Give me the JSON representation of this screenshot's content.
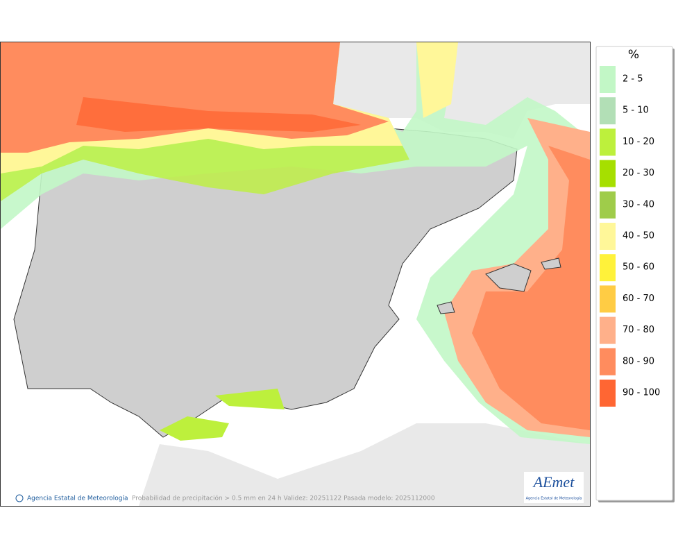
{
  "map": {
    "credit": "Agencia Estatal de Meteorología",
    "caption": "Probabilidad de precipitación > 0.5 mm en 24 h Validez: 20251122 Pasada modelo: 2025112000",
    "logo": {
      "name": "AEmet",
      "subtitle": "Agencia Estatal de Meteorología"
    }
  },
  "legend": {
    "title": "%",
    "items": [
      {
        "label": "2 - 5",
        "color": "#c2f7c6"
      },
      {
        "label": "5 - 10",
        "color": "#b2dfb6"
      },
      {
        "label": "10 - 20",
        "color": "#bdf03c"
      },
      {
        "label": "20 - 30",
        "color": "#a6df00"
      },
      {
        "label": "30 - 40",
        "color": "#9fcc4a"
      },
      {
        "label": "40 - 50",
        "color": "#fff799"
      },
      {
        "label": "50 - 60",
        "color": "#fff23a"
      },
      {
        "label": "60 - 70",
        "color": "#ffcc44"
      },
      {
        "label": "70 - 80",
        "color": "#ffb08a"
      },
      {
        "label": "80 - 90",
        "color": "#ff8c5e"
      },
      {
        "label": "90 - 100",
        "color": "#ff6633"
      }
    ]
  }
}
